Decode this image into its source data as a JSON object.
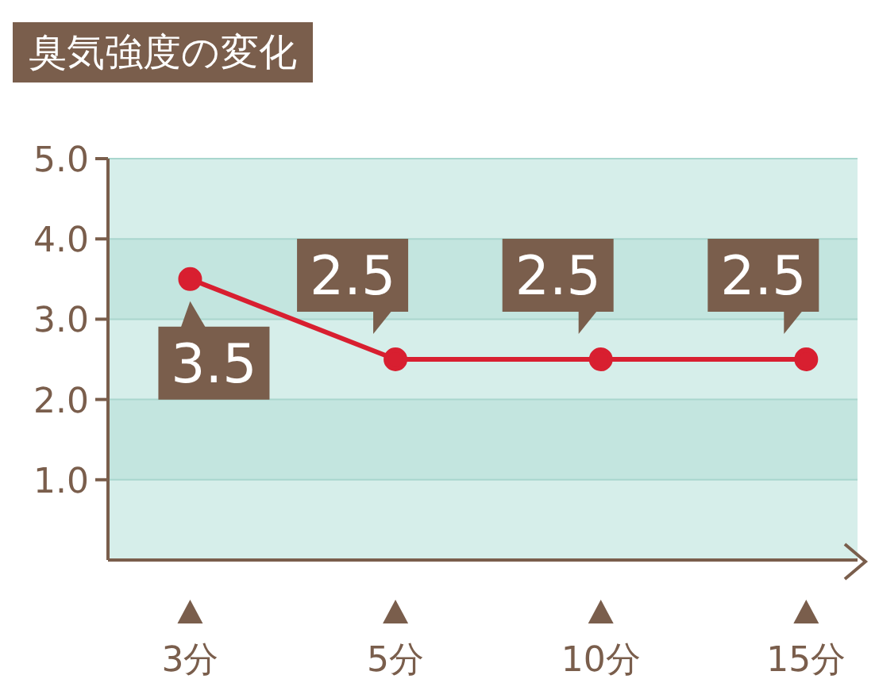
{
  "chart_data": {
    "type": "line",
    "title": "臭気強度の変化",
    "categories": [
      "3分",
      "5分",
      "10分",
      "15分"
    ],
    "series": [
      {
        "color": "#d81f30",
        "values": [
          3.5,
          2.5,
          2.5,
          2.5
        ]
      }
    ],
    "ylim": [
      0,
      5
    ],
    "yticks": [
      {
        "value": 1,
        "label": "1.0"
      },
      {
        "value": 2,
        "label": "2.0"
      },
      {
        "value": 3,
        "label": "3.0"
      },
      {
        "value": 4,
        "label": "4.0"
      },
      {
        "value": 5,
        "label": "5.0"
      }
    ],
    "grid": "y",
    "marker": "circle",
    "data_labels": true
  }
}
